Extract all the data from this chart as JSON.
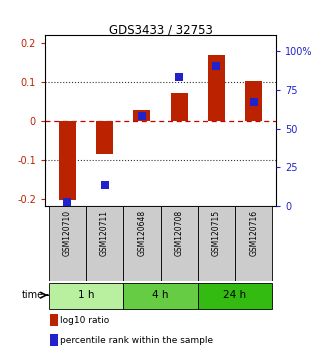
{
  "title": "GDS3433 / 32753",
  "samples": [
    "GSM120710",
    "GSM120711",
    "GSM120648",
    "GSM120708",
    "GSM120715",
    "GSM120716"
  ],
  "log10_ratio": [
    -0.205,
    -0.085,
    0.028,
    0.072,
    0.17,
    0.102
  ],
  "percentile_rank": [
    3.0,
    14.0,
    58.0,
    83.0,
    90.0,
    67.0
  ],
  "time_groups": [
    {
      "label": "1 h",
      "start": 0,
      "end": 2
    },
    {
      "label": "4 h",
      "start": 2,
      "end": 4
    },
    {
      "label": "24 h",
      "start": 4,
      "end": 6
    }
  ],
  "ylim_left": [
    -0.22,
    0.22
  ],
  "ylim_right": [
    0,
    110
  ],
  "yticks_left": [
    -0.2,
    -0.1,
    0.0,
    0.1,
    0.2
  ],
  "ytick_labels_left": [
    "-0.2",
    "-0.1",
    "0",
    "0.1",
    "0.2"
  ],
  "yticks_right": [
    0,
    25,
    50,
    75,
    100
  ],
  "ytick_labels_right": [
    "0",
    "25",
    "50",
    "75",
    "100%"
  ],
  "bar_color": "#bb2200",
  "dot_color": "#2222cc",
  "bar_width": 0.45,
  "dot_size": 30,
  "hline_zero_color": "#cc0000",
  "hline_dotted_color": "#333333",
  "bg_color": "#ffffff",
  "sample_box_color": "#cccccc",
  "time_box_colors": [
    "#b8f0a0",
    "#66cc44",
    "#33bb11"
  ],
  "legend_red_label": "log10 ratio",
  "legend_blue_label": "percentile rank within the sample"
}
